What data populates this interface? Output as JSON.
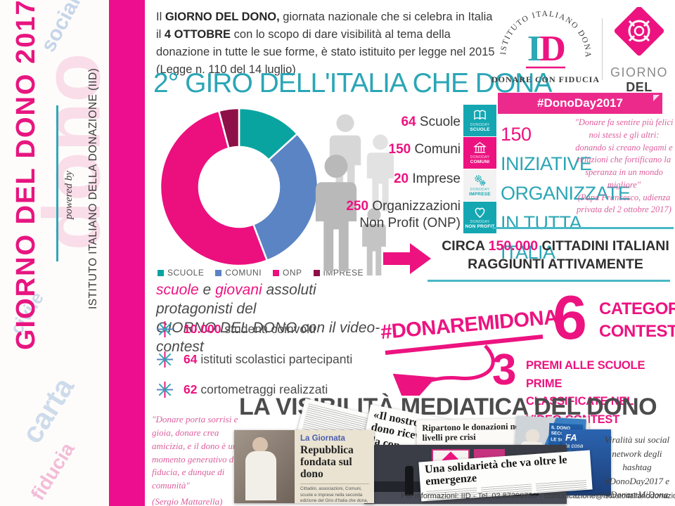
{
  "sidebar": {
    "title": "GIORNO DEL DONO 2017",
    "powered_by": "powered by",
    "org": "ISTITUTO ITALIANO DELLA DONAZIONE (IID)",
    "watermark": [
      "dono",
      "sociale",
      "civile",
      "carta",
      "fiducia"
    ]
  },
  "intro": {
    "lead": "Il ",
    "b1": "GIORNO DEL DONO,",
    "t1": " giornata nazionale che si celebra in Italia il ",
    "b2": "4 OTTOBRE",
    "t2": " con lo scopo di dare visibilità al tema della donazione in tutte le sue forme, è stato istituito per legge nel 2015 (Legge n. 110 del 14 luglio)"
  },
  "main_title": "2° GIRO DELL'ITALIA CHE DONA",
  "logos": {
    "iid": {
      "circular_text": "ISTITUTO ITALIANO DONAZIONE",
      "letter_i": "I",
      "letter_d": "D",
      "tagline": "DONARE CON FIDUCIA"
    },
    "gdd": {
      "line1": "GIORNO",
      "line2": "DEL DONO"
    },
    "ribbon": "#DonoDay2017"
  },
  "chart_data": {
    "type": "pie",
    "subtype": "donut",
    "categories": [
      "SCUOLE",
      "COMUNI",
      "ONP",
      "IMPRESE"
    ],
    "values": [
      64,
      150,
      250,
      20
    ],
    "colors": [
      "#0aa4a0",
      "#5b84c4",
      "#ec0f7e",
      "#8e1048"
    ],
    "legend_position": "bottom",
    "title": ""
  },
  "stats": [
    {
      "value": "64",
      "label": " Scuole"
    },
    {
      "value": "150",
      "label": " Comuni"
    },
    {
      "value": "20",
      "label": " Imprese"
    },
    {
      "value": "250",
      "label": " Organizzazioni",
      "label2": "Non Profit (ONP)"
    }
  ],
  "badges": [
    {
      "icon": "book-icon",
      "line1": "DONODAY",
      "line2": "SCUOLE",
      "bg": "#14a7b2",
      "fg": "#ffffff"
    },
    {
      "icon": "bank-icon",
      "line1": "DONODAY",
      "line2": "COMUNI",
      "bg": "#ec1380",
      "fg": "#ffffff"
    },
    {
      "icon": "gears-icon",
      "line1": "DONODAY",
      "line2": "IMPRESE",
      "bg": "#f2f2f2",
      "fg": "#14a7b2"
    },
    {
      "icon": "heart-icon",
      "line1": "DONODAY",
      "line2": "NON PROFIT",
      "bg": "#14a7b2",
      "fg": "#ffffff"
    }
  ],
  "initiatives": {
    "number": "150",
    "word": " INIZIATIVE",
    "line2": "ORGANIZZATE",
    "line3": "IN TUTTA ITALIA"
  },
  "pope_quote": {
    "text": "\"Donare fa sentire più felici noi stessi e gli altri: donando si creano legami e relazioni che fortificano la speranza in un mondo migliore\"",
    "attribution": "(Papa Francesco, udienza privata del 2 ottobre 2017)"
  },
  "reach": {
    "pre": "CIRCA ",
    "number": "150.000",
    "post": " CITTADINI ITALIANI",
    "line2": "RAGGIUNTI ATTIVAMENTE"
  },
  "protagonists": {
    "p1": "scuole",
    "p2": " e ",
    "p3": "giovani",
    "p4": " assoluti protagonisti del",
    "l2a": "GIORNO DEL DONO",
    "l2b": " con il video-contest"
  },
  "bullets": [
    {
      "number": "10.000",
      "label": " studenti coinvolti"
    },
    {
      "number": "64",
      "label": " istituti scolastici partecipanti"
    },
    {
      "number": "62",
      "label": " cortometraggi realizzati"
    }
  ],
  "hashtag_banner": "#DONAREMIDONA",
  "contest": {
    "big6": "6",
    "cat1": "CATEGORIE",
    "cat2": "CONTEST",
    "big3": "3",
    "prize1": "PREMI ALLE SCUOLE PRIME",
    "prize2": "CLASSIFICATE NEL VIDEO-CONTEST"
  },
  "media": {
    "title": "LA VISIBILITÀ MEDIATICA DEL DONO",
    "mattarella_quote": {
      "text": "\"Donare porta sorrisi e gioia, donare crea amicizia, e il dono è un momento generativo di fiducia, e dunque di comunità\"",
      "attribution": "(Sergio Mattarella)"
    },
    "clippings": {
      "giornata": {
        "kicker": "La Giornata",
        "headline": "Repubblica fondata sul dono",
        "body": "Cittadini, associazioni, Comuni, scuole e imprese nella seconda edizione del Giro d'Italia che dona, mercoledì."
      },
      "nostro": {
        "l1": "«Il nostro pian",
        "l2": "dono ricev",
        "l3": "da con"
      },
      "donazioni_headline": "Ripartono le donazioni nel 2016 tornate ai livelli pre crisi",
      "solidarieta_headline": "Una solidarietà che va oltre le emergenze",
      "tv1": "IL DONO SECONDO LE SCUOLE",
      "tv2": {
        "l1": "FA",
        "l2": "la cosa",
        "l3": "giusta"
      }
    },
    "social": "Viralità sui social network degli hashtag #DonoDay2017 e #DonareMiDona"
  },
  "footer": "Per informazioni: IID - Tel. 02.87390788 - comunicazione@istitutoitalianodonazione.it",
  "colors": {
    "accent_pink": "#ec1380",
    "magenta_bar": "#ec0e8e",
    "teal": "#2ba6b6",
    "blue": "#5b84c4",
    "maroon": "#8e1048",
    "dark_text": "#3a3a3a"
  }
}
